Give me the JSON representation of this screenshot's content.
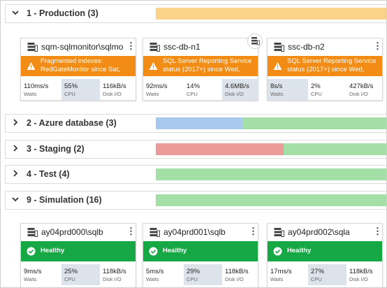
{
  "groups": [
    {
      "chevron": "expanded",
      "title": "1 - Production (3)",
      "bar": [
        {
          "color": "#fcd38b",
          "pct": 100
        }
      ]
    },
    {
      "chevron": "collapsed",
      "title": "2 - Azure database (3)",
      "bar": [
        {
          "color": "#a9c8ee",
          "pct": 36
        },
        {
          "color": "#a3dfa6",
          "pct": 64
        }
      ]
    },
    {
      "chevron": "collapsed",
      "title": "3 - Staging (2)",
      "bar": [
        {
          "color": "#ec9b9b",
          "pct": 53
        },
        {
          "color": "#a3dfa6",
          "pct": 47
        }
      ]
    },
    {
      "chevron": "collapsed",
      "title": "4 - Test (4)",
      "bar": [
        {
          "color": "#a3dfa6",
          "pct": 100
        }
      ]
    },
    {
      "chevron": "expanded",
      "title": "9 - Simulation (16)",
      "bar": [
        {
          "color": "#a3dfa6",
          "pct": 100
        }
      ]
    }
  ],
  "production_cards": [
    {
      "name": "sqm-sqlmonitor\\sqlmo...",
      "status": "warning",
      "message_line1": "Fragmented indexes:",
      "message_line2": "RedGateMonitor since Sat,",
      "waits": "110ms/s",
      "waits_label": "Waits",
      "cpu": "55%",
      "cpu_label": "CPU",
      "disk": "116kB/s",
      "disk_label": "Disk I/O",
      "highlight": "cpu"
    },
    {
      "name": "ssc-db-n1",
      "status": "warning",
      "message_line1": "SQL Server Reporting Service",
      "message_line2": "status (2017+) since Wed,",
      "waits": "92ms/s",
      "waits_label": "Waits",
      "cpu": "14%",
      "cpu_label": "CPU",
      "disk": "4.6MB/s",
      "disk_label": "Disk I/O",
      "highlight": "disk"
    },
    {
      "name": "ssc-db-n2",
      "status": "warning",
      "message_line1": "SQL Server Reporting Service",
      "message_line2": "status (2017+) since Wed,",
      "waits": "8s/s",
      "waits_label": "Waits",
      "cpu": "2%",
      "cpu_label": "CPU",
      "disk": "427kB/s",
      "disk_label": "Disk I/O",
      "highlight": "waits"
    }
  ],
  "simulation_cards": [
    {
      "name": "ay04prd000\\sqlb",
      "status": "healthy",
      "message": "Healthy",
      "waits": "9ms/s",
      "waits_label": "Waits",
      "cpu": "25%",
      "cpu_label": "CPU",
      "disk": "118kB/s",
      "disk_label": "Disk I/O",
      "highlight": "cpu"
    },
    {
      "name": "ay04prd001\\sqlb",
      "status": "healthy",
      "message": "Healthy",
      "waits": "5ms/s",
      "waits_label": "Waits",
      "cpu": "29%",
      "cpu_label": "CPU",
      "disk": "118kB/s",
      "disk_label": "Disk I/O",
      "highlight": "cpu"
    },
    {
      "name": "ay04prd002\\sqla",
      "status": "healthy",
      "message": "Healthy",
      "waits": "17ms/s",
      "waits_label": "Waits",
      "cpu": "27%",
      "cpu_label": "CPU",
      "disk": "118kB/s",
      "disk_label": "Disk I/O",
      "highlight": "cpu"
    }
  ],
  "icons": {
    "server": "server-icon",
    "warning": "warning-icon",
    "healthy": "check-circle-icon",
    "menu": "kebab-menu-icon",
    "cluster": "cluster-icon"
  }
}
